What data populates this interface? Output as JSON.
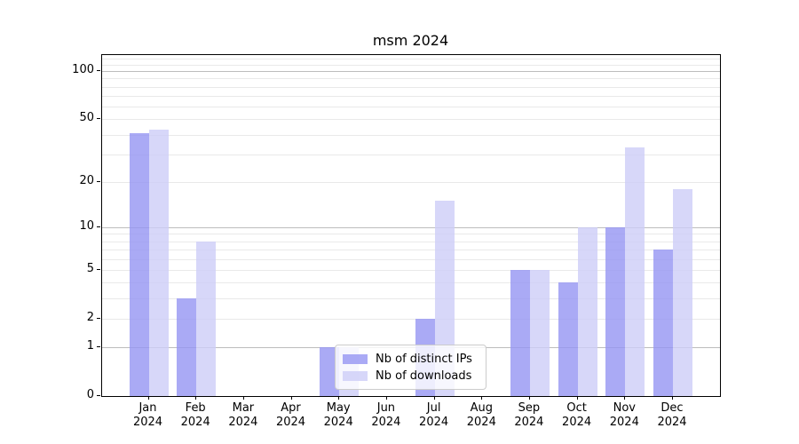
{
  "title": "msm 2024",
  "chart_data": {
    "type": "bar",
    "title": "msm 2024",
    "categories": [
      "Jan 2024",
      "Feb 2024",
      "Mar 2024",
      "Apr 2024",
      "May 2024",
      "Jun 2024",
      "Jul 2024",
      "Aug 2024",
      "Sep 2024",
      "Oct 2024",
      "Nov 2024",
      "Dec 2024"
    ],
    "months": [
      "Jan",
      "Feb",
      "Mar",
      "Apr",
      "May",
      "Jun",
      "Jul",
      "Aug",
      "Sep",
      "Oct",
      "Nov",
      "Dec"
    ],
    "year": "2024",
    "series": [
      {
        "name": "Nb of distinct IPs",
        "color": "#9595f3",
        "values": [
          41,
          3,
          0,
          0,
          1,
          0,
          2,
          0,
          5,
          4,
          10,
          7
        ]
      },
      {
        "name": "Nb of downloads",
        "color": "#cdcdf8",
        "values": [
          43,
          8,
          0,
          0,
          1,
          0,
          15,
          0,
          5,
          10,
          33,
          18
        ]
      }
    ],
    "yscale": "log1p",
    "ylim": [
      0,
      125
    ],
    "yticks": [
      0,
      1,
      2,
      5,
      10,
      20,
      50,
      100
    ],
    "grid": "on",
    "grid_major_values": [
      1,
      10,
      100
    ],
    "grid_minor_values": [
      2,
      3,
      4,
      5,
      6,
      7,
      8,
      9,
      20,
      30,
      40,
      50,
      60,
      70,
      80,
      90,
      110,
      120
    ],
    "grid_major_color": "#bdbdbd",
    "grid_minor_color": "#e9e9e9",
    "legend_position": "lower center",
    "xlabel": "",
    "ylabel": ""
  }
}
